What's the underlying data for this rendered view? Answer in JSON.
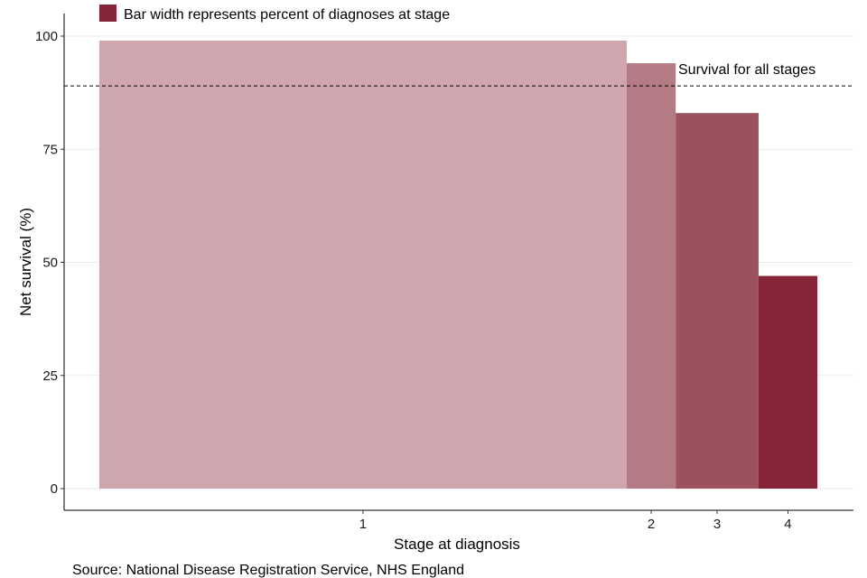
{
  "chart_data": {
    "type": "bar",
    "categories": [
      "1",
      "2",
      "3",
      "4"
    ],
    "values": [
      99,
      94,
      83,
      47
    ],
    "widths_percent": [
      70,
      6.5,
      11,
      7.8
    ],
    "colors": [
      "#cfa6ae",
      "#b47b84",
      "#9b525d",
      "#852537"
    ],
    "xlabel": "Stage at diagnosis",
    "ylabel": "Net survival (%)",
    "ylim": [
      0,
      105
    ],
    "yticks": [
      0,
      25,
      50,
      75,
      100
    ],
    "grid": true,
    "legend": {
      "label": "Bar width represents percent of diagnoses at stage",
      "color": "#852537",
      "placement": "top-left"
    },
    "reference_line": {
      "value": 89,
      "label": "Survival for all stages",
      "style": "dashed"
    }
  },
  "source": "Source: National Disease Registration Service, NHS England"
}
